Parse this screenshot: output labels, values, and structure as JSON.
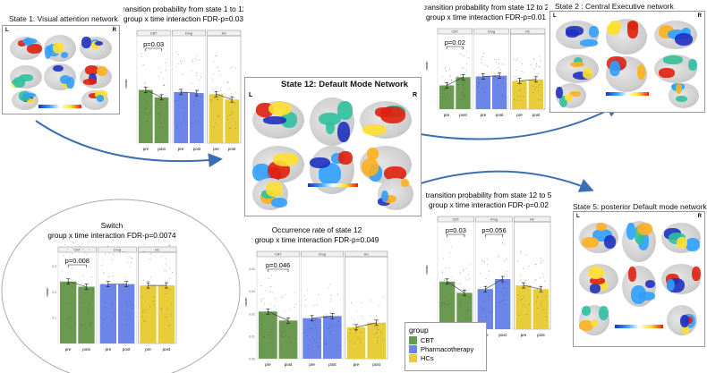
{
  "states": {
    "state1": {
      "title": "State 1: Visual attention network",
      "left": "L",
      "right": "R"
    },
    "state12": {
      "title": "State 12: Default Mode Network",
      "left": "L",
      "right": "R"
    },
    "state2": {
      "title": "State 2 : Central Executive network",
      "left": "L",
      "right": "R"
    },
    "state5": {
      "title": "State 5: posterior Default mode network",
      "left": "L",
      "right": "R"
    }
  },
  "colors": {
    "CBT": "#6a9a50",
    "Pharmacotherapy": "#6b86e8",
    "HCs": "#e8cc3a",
    "arrow": "#3b6fb5"
  },
  "legend": {
    "title": "group",
    "items": [
      "CBT",
      "Pharmacotherapy",
      "HCs"
    ]
  },
  "chart_data": [
    {
      "id": "t1to12",
      "type": "bar",
      "title": "transition probability from state 1 to 12",
      "subtitle": "group x time interaction FDR-p=0.03",
      "facets": [
        "CBT",
        "Drug",
        "HC"
      ],
      "categories": [
        "pre",
        "post"
      ],
      "ylabel": "mean",
      "ylim": [
        0,
        1
      ],
      "yticks": [],
      "series": [
        {
          "name": "CBT",
          "values": [
            0.5,
            0.43
          ]
        },
        {
          "name": "Drug",
          "values": [
            0.48,
            0.47
          ]
        },
        {
          "name": "HC",
          "values": [
            0.46,
            0.41
          ]
        }
      ],
      "annotations": [
        {
          "facet": "CBT",
          "text": "p=0.03"
        }
      ]
    },
    {
      "id": "t12to2",
      "type": "bar",
      "title": "transition probability from state 12 to 2",
      "subtitle": "group x time interaction FDR-p=0.01",
      "facets": [
        "CBT",
        "Drug",
        "HC"
      ],
      "categories": [
        "pre",
        "post"
      ],
      "ylabel": "mean",
      "ylim": [
        0,
        1
      ],
      "yticks": [],
      "series": [
        {
          "name": "CBT",
          "values": [
            0.32,
            0.43
          ]
        },
        {
          "name": "Drug",
          "values": [
            0.44,
            0.45
          ]
        },
        {
          "name": "HC",
          "values": [
            0.38,
            0.4
          ]
        }
      ],
      "annotations": [
        {
          "facet": "CBT",
          "text": "p=0.02"
        }
      ]
    },
    {
      "id": "t12to5",
      "type": "bar",
      "title": "transition probability from state 12 to 5",
      "subtitle": "group x time interaction FDR-p=0.02",
      "facets": [
        "CBT",
        "Drug",
        "HC"
      ],
      "categories": [
        "pre",
        "post"
      ],
      "ylabel": "mean",
      "ylim": [
        0,
        0.085
      ],
      "yticks": [],
      "series": [
        {
          "name": "CBT",
          "values": [
            0.038,
            0.029
          ]
        },
        {
          "name": "Drug",
          "values": [
            0.032,
            0.04
          ]
        },
        {
          "name": "HC",
          "values": [
            0.035,
            0.032
          ]
        }
      ],
      "annotations": [
        {
          "facet": "CBT",
          "text": "p=0.03"
        },
        {
          "facet": "Drug",
          "text": "p=0.056"
        }
      ]
    },
    {
      "id": "switch",
      "type": "bar",
      "title": "Switch",
      "subtitle": "group x time interaction FDR-p=0.0074",
      "facets": [
        "CBT",
        "Drug",
        "HC"
      ],
      "categories": [
        "pre",
        "post"
      ],
      "ylabel": "mean",
      "ylim": [
        0,
        0.35
      ],
      "yticks": [
        "0.1",
        "0.2",
        "0.3"
      ],
      "series": [
        {
          "name": "CBT",
          "values": [
            0.24,
            0.22
          ]
        },
        {
          "name": "Drug",
          "values": [
            0.23,
            0.23
          ]
        },
        {
          "name": "HC",
          "values": [
            0.225,
            0.225
          ]
        }
      ],
      "annotations": [
        {
          "facet": "CBT",
          "text": "p=0.008"
        }
      ]
    },
    {
      "id": "occ",
      "type": "bar",
      "title": "Occurrence rate of state 12",
      "subtitle": "group x time interaction FDR-p=0.049",
      "facets": [
        "CBT",
        "Drug",
        "HC"
      ],
      "categories": [
        "pre",
        "post"
      ],
      "ylabel": "mean",
      "ylim": [
        0,
        0.045
      ],
      "yticks": [
        "0.00",
        "0.01",
        "0.02",
        "0.03",
        "0.04"
      ],
      "series": [
        {
          "name": "CBT",
          "values": [
            0.021,
            0.017
          ]
        },
        {
          "name": "Drug",
          "values": [
            0.018,
            0.019
          ]
        },
        {
          "name": "HC",
          "values": [
            0.014,
            0.016
          ]
        }
      ],
      "annotations": [
        {
          "facet": "CBT",
          "text": "p=0.046"
        }
      ]
    }
  ]
}
